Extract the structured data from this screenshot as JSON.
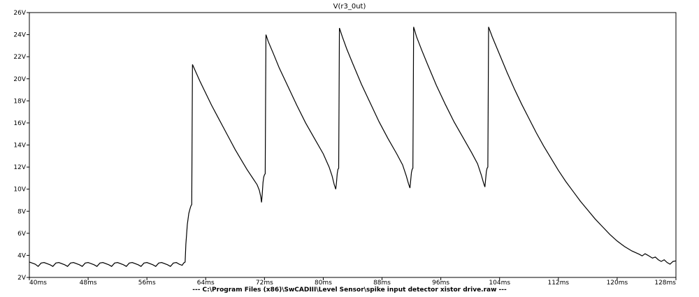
{
  "chart_data": {
    "type": "line",
    "title": "V(r3_0ut)",
    "footer": "--- C:\\Program Files (x86)\\SwCADIII\\Level Sensor\\spike input detector xistor drive.raw ---",
    "xlabel": "",
    "ylabel": "",
    "xlim": [
      40,
      128
    ],
    "ylim": [
      2,
      26
    ],
    "x_unit": "ms",
    "y_unit": "V",
    "x_ticks": [
      40,
      48,
      56,
      64,
      72,
      80,
      88,
      96,
      104,
      112,
      120,
      128
    ],
    "x_tick_labels": [
      "40ms",
      "48ms",
      "56ms",
      "64ms",
      "72ms",
      "80ms",
      "88ms",
      "96ms",
      "104ms",
      "112ms",
      "120ms",
      "128ms"
    ],
    "y_ticks": [
      2,
      4,
      6,
      8,
      10,
      12,
      14,
      16,
      18,
      20,
      22,
      24,
      26
    ],
    "y_tick_labels": [
      "2V",
      "4V",
      "6V",
      "8V",
      "10V",
      "12V",
      "14V",
      "16V",
      "18V",
      "20V",
      "22V",
      "24V",
      "26V"
    ],
    "grid": false,
    "line_color": "#000000",
    "series": [
      {
        "values_desc": "",
        "points": [
          [
            40.0,
            3.4
          ],
          [
            40.8,
            3.2
          ],
          [
            41.2,
            3.0
          ],
          [
            41.6,
            3.3
          ],
          [
            42.0,
            3.35
          ],
          [
            42.8,
            3.15
          ],
          [
            43.2,
            3.0
          ],
          [
            43.6,
            3.3
          ],
          [
            44.0,
            3.35
          ],
          [
            44.8,
            3.15
          ],
          [
            45.2,
            3.0
          ],
          [
            45.6,
            3.3
          ],
          [
            46.0,
            3.35
          ],
          [
            46.8,
            3.15
          ],
          [
            47.2,
            3.0
          ],
          [
            47.6,
            3.3
          ],
          [
            48.0,
            3.35
          ],
          [
            48.8,
            3.15
          ],
          [
            49.2,
            3.0
          ],
          [
            49.6,
            3.3
          ],
          [
            50.0,
            3.35
          ],
          [
            50.8,
            3.15
          ],
          [
            51.2,
            3.0
          ],
          [
            51.6,
            3.3
          ],
          [
            52.0,
            3.35
          ],
          [
            52.8,
            3.15
          ],
          [
            53.2,
            3.0
          ],
          [
            53.6,
            3.3
          ],
          [
            54.0,
            3.35
          ],
          [
            54.8,
            3.15
          ],
          [
            55.2,
            3.0
          ],
          [
            55.6,
            3.3
          ],
          [
            56.0,
            3.35
          ],
          [
            56.8,
            3.15
          ],
          [
            57.2,
            3.0
          ],
          [
            57.6,
            3.3
          ],
          [
            58.0,
            3.35
          ],
          [
            58.8,
            3.15
          ],
          [
            59.2,
            3.0
          ],
          [
            59.6,
            3.3
          ],
          [
            60.0,
            3.35
          ],
          [
            60.4,
            3.2
          ],
          [
            60.8,
            3.1
          ],
          [
            61.0,
            3.3
          ],
          [
            61.2,
            3.4
          ],
          [
            61.3,
            5.0
          ],
          [
            61.5,
            6.8
          ],
          [
            61.7,
            7.8
          ],
          [
            61.9,
            8.3
          ],
          [
            62.0,
            8.5
          ],
          [
            62.1,
            8.6
          ],
          [
            62.15,
            15.0
          ],
          [
            62.2,
            21.3
          ],
          [
            62.6,
            20.7
          ],
          [
            63.2,
            19.8
          ],
          [
            64.0,
            18.7
          ],
          [
            64.8,
            17.6
          ],
          [
            65.6,
            16.6
          ],
          [
            66.4,
            15.6
          ],
          [
            67.2,
            14.6
          ],
          [
            68.0,
            13.6
          ],
          [
            68.8,
            12.7
          ],
          [
            69.6,
            11.8
          ],
          [
            70.4,
            11.0
          ],
          [
            71.0,
            10.4
          ],
          [
            71.3,
            9.9
          ],
          [
            71.5,
            9.3
          ],
          [
            71.6,
            8.8
          ],
          [
            71.7,
            9.6
          ],
          [
            71.8,
            10.6
          ],
          [
            71.9,
            11.1
          ],
          [
            72.0,
            11.3
          ],
          [
            72.1,
            11.4
          ],
          [
            72.15,
            18.0
          ],
          [
            72.2,
            24.0
          ],
          [
            72.5,
            23.4
          ],
          [
            73.2,
            22.3
          ],
          [
            74.0,
            21.0
          ],
          [
            75.2,
            19.3
          ],
          [
            76.4,
            17.6
          ],
          [
            77.6,
            16.0
          ],
          [
            78.8,
            14.6
          ],
          [
            80.0,
            13.2
          ],
          [
            80.8,
            12.0
          ],
          [
            81.2,
            11.2
          ],
          [
            81.5,
            10.4
          ],
          [
            81.7,
            10.0
          ],
          [
            81.8,
            10.6
          ],
          [
            81.9,
            11.4
          ],
          [
            82.0,
            11.8
          ],
          [
            82.1,
            11.9
          ],
          [
            82.15,
            18.0
          ],
          [
            82.2,
            24.6
          ],
          [
            82.6,
            23.8
          ],
          [
            83.2,
            22.7
          ],
          [
            84.0,
            21.4
          ],
          [
            85.2,
            19.5
          ],
          [
            86.4,
            17.8
          ],
          [
            87.6,
            16.1
          ],
          [
            88.8,
            14.6
          ],
          [
            90.0,
            13.2
          ],
          [
            90.8,
            12.2
          ],
          [
            91.3,
            11.2
          ],
          [
            91.6,
            10.5
          ],
          [
            91.8,
            10.1
          ],
          [
            91.9,
            10.8
          ],
          [
            92.0,
            11.5
          ],
          [
            92.1,
            11.8
          ],
          [
            92.2,
            11.9
          ],
          [
            92.25,
            18.0
          ],
          [
            92.3,
            24.7
          ],
          [
            92.7,
            23.8
          ],
          [
            93.4,
            22.6
          ],
          [
            94.2,
            21.3
          ],
          [
            95.4,
            19.4
          ],
          [
            96.6,
            17.7
          ],
          [
            97.8,
            16.1
          ],
          [
            99.0,
            14.7
          ],
          [
            100.2,
            13.3
          ],
          [
            101.0,
            12.3
          ],
          [
            101.5,
            11.3
          ],
          [
            101.8,
            10.6
          ],
          [
            102.0,
            10.2
          ],
          [
            102.1,
            10.9
          ],
          [
            102.2,
            11.6
          ],
          [
            102.3,
            11.9
          ],
          [
            102.4,
            12.0
          ],
          [
            102.45,
            18.0
          ],
          [
            102.5,
            24.7
          ],
          [
            103.0,
            23.8
          ],
          [
            104.0,
            22.2
          ],
          [
            105.0,
            20.6
          ],
          [
            106.0,
            19.1
          ],
          [
            107.0,
            17.7
          ],
          [
            108.0,
            16.4
          ],
          [
            109.0,
            15.1
          ],
          [
            110.0,
            13.9
          ],
          [
            111.0,
            12.8
          ],
          [
            112.0,
            11.7
          ],
          [
            113.0,
            10.7
          ],
          [
            114.0,
            9.8
          ],
          [
            115.0,
            8.9
          ],
          [
            116.0,
            8.1
          ],
          [
            117.0,
            7.3
          ],
          [
            118.0,
            6.6
          ],
          [
            119.0,
            5.9
          ],
          [
            120.0,
            5.3
          ],
          [
            121.0,
            4.8
          ],
          [
            122.0,
            4.4
          ],
          [
            123.0,
            4.1
          ],
          [
            123.4,
            3.95
          ],
          [
            123.8,
            4.15
          ],
          [
            124.2,
            4.0
          ],
          [
            124.8,
            3.75
          ],
          [
            125.2,
            3.85
          ],
          [
            125.6,
            3.6
          ],
          [
            126.0,
            3.45
          ],
          [
            126.4,
            3.6
          ],
          [
            126.8,
            3.35
          ],
          [
            127.2,
            3.2
          ],
          [
            127.6,
            3.45
          ],
          [
            128.0,
            3.5
          ]
        ]
      }
    ]
  }
}
